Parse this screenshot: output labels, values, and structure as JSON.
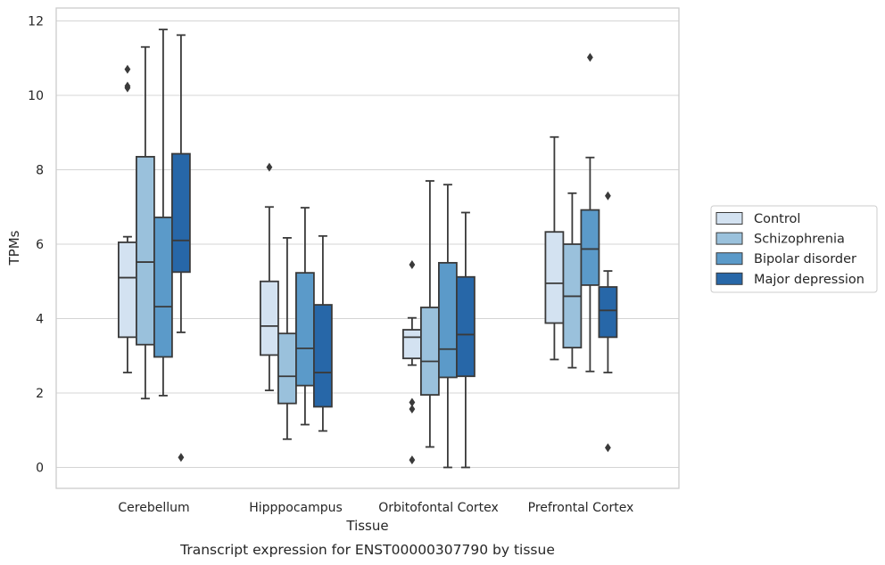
{
  "chart_data": {
    "type": "box",
    "caption": "Transcript expression for ENST00000307790 by tissue",
    "xlabel": "Tissue",
    "ylabel": "TPMs",
    "ylim": [
      -0.55,
      12.35
    ],
    "yticks": [
      0,
      2,
      4,
      6,
      8,
      10,
      12
    ],
    "grid": "horizontal",
    "legend_position": "right",
    "categories": [
      "Cerebellum",
      "Hipppocampus",
      "Orbitofontal Cortex",
      "Prefrontal Cortex"
    ],
    "series": [
      {
        "name": "Control",
        "color": "#d3e2f1",
        "boxes": [
          {
            "whisker_low": 2.55,
            "q1": 3.5,
            "median": 5.1,
            "q3": 6.05,
            "whisker_high": 6.2,
            "outliers": [
              10.7,
              10.25,
              10.2
            ]
          },
          {
            "whisker_low": 2.07,
            "q1": 3.02,
            "median": 3.8,
            "q3": 5.0,
            "whisker_high": 7.0,
            "outliers": [
              8.07
            ]
          },
          {
            "whisker_low": 2.75,
            "q1": 2.93,
            "median": 3.5,
            "q3": 3.7,
            "whisker_high": 4.02,
            "outliers": [
              5.45,
              1.75,
              1.57,
              0.2
            ]
          },
          {
            "whisker_low": 2.9,
            "q1": 3.88,
            "median": 4.95,
            "q3": 6.33,
            "whisker_high": 8.88,
            "outliers": []
          }
        ]
      },
      {
        "name": "Schizophrenia",
        "color": "#9ac1dc",
        "boxes": [
          {
            "whisker_low": 1.85,
            "q1": 3.3,
            "median": 5.52,
            "q3": 8.35,
            "whisker_high": 11.3,
            "outliers": []
          },
          {
            "whisker_low": 0.76,
            "q1": 1.72,
            "median": 2.45,
            "q3": 3.6,
            "whisker_high": 6.17,
            "outliers": []
          },
          {
            "whisker_low": 0.55,
            "q1": 1.95,
            "median": 2.85,
            "q3": 4.3,
            "whisker_high": 7.7,
            "outliers": []
          },
          {
            "whisker_low": 2.68,
            "q1": 3.22,
            "median": 4.6,
            "q3": 6.0,
            "whisker_high": 7.37,
            "outliers": []
          }
        ]
      },
      {
        "name": "Bipolar disorder",
        "color": "#5b9ac9",
        "boxes": [
          {
            "whisker_low": 1.93,
            "q1": 2.97,
            "median": 4.32,
            "q3": 6.72,
            "whisker_high": 11.77,
            "outliers": []
          },
          {
            "whisker_low": 1.15,
            "q1": 2.2,
            "median": 3.2,
            "q3": 5.23,
            "whisker_high": 6.98,
            "outliers": []
          },
          {
            "whisker_low": 0.0,
            "q1": 2.42,
            "median": 3.18,
            "q3": 5.5,
            "whisker_high": 7.6,
            "outliers": []
          },
          {
            "whisker_low": 2.58,
            "q1": 4.9,
            "median": 5.87,
            "q3": 6.92,
            "whisker_high": 8.33,
            "outliers": [
              11.02
            ]
          }
        ]
      },
      {
        "name": "Major depression",
        "color": "#2767a8",
        "boxes": [
          {
            "whisker_low": 3.63,
            "q1": 5.25,
            "median": 6.1,
            "q3": 8.43,
            "whisker_high": 11.62,
            "outliers": [
              0.27
            ]
          },
          {
            "whisker_low": 0.98,
            "q1": 1.63,
            "median": 2.55,
            "q3": 4.37,
            "whisker_high": 6.22,
            "outliers": []
          },
          {
            "whisker_low": 0.0,
            "q1": 2.45,
            "median": 3.57,
            "q3": 5.12,
            "whisker_high": 6.85,
            "outliers": []
          },
          {
            "whisker_low": 2.55,
            "q1": 3.5,
            "median": 4.22,
            "q3": 4.85,
            "whisker_high": 5.28,
            "outliers": [
              7.3,
              0.53
            ]
          }
        ]
      }
    ]
  }
}
